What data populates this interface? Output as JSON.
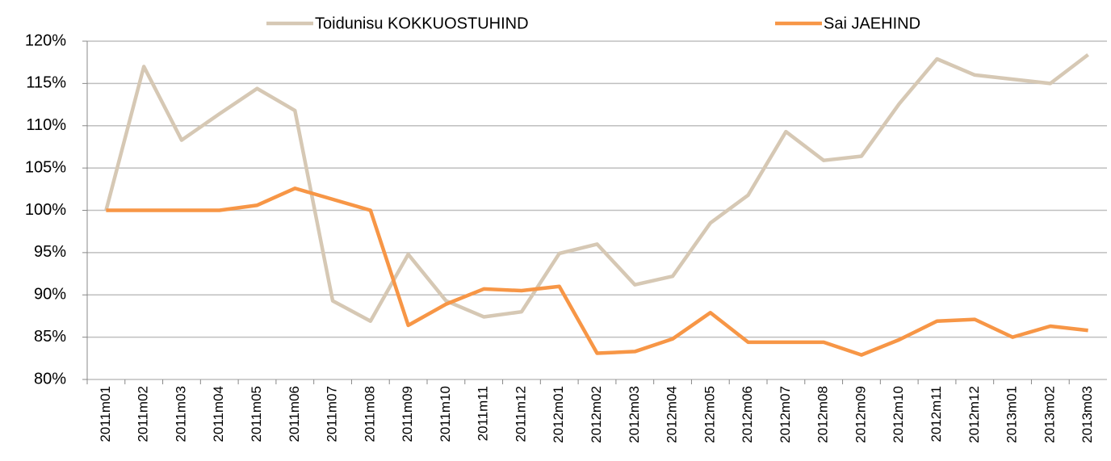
{
  "chart_data": {
    "type": "line",
    "categories": [
      "2011m01",
      "2011m02",
      "2011m03",
      "2011m04",
      "2011m05",
      "2011m06",
      "2011m07",
      "2011m08",
      "2011m09",
      "2011m10",
      "2011m11",
      "2011m12",
      "2012m01",
      "2012m02",
      "2012m03",
      "2012m04",
      "2012m05",
      "2012m06",
      "2012m07",
      "2012m08",
      "2012m09",
      "2012m10",
      "2012m11",
      "2012m12",
      "2013m01",
      "2013m02",
      "2013m03"
    ],
    "series": [
      {
        "name": "Toidunisu KOKKUOSTUHIND",
        "color": "#d6c8b4",
        "values": [
          100,
          117,
          108.3,
          111.4,
          114.4,
          111.8,
          89.3,
          86.9,
          94.8,
          89.3,
          87.4,
          88.0,
          94.9,
          96.0,
          91.2,
          92.2,
          98.5,
          101.8,
          109.3,
          105.9,
          106.4,
          112.6,
          117.9,
          116.0,
          115.5,
          115.0,
          118.4
        ]
      },
      {
        "name": "Sai JAEHIND",
        "color": "#f79646",
        "values": [
          100,
          100,
          100,
          100,
          100.6,
          102.6,
          101.3,
          100,
          86.4,
          88.9,
          90.7,
          90.5,
          91.0,
          83.1,
          83.3,
          84.8,
          87.9,
          84.4,
          84.4,
          84.4,
          82.9,
          84.7,
          86.9,
          87.1,
          85.0,
          86.3,
          85.8
        ]
      }
    ],
    "ylim": [
      80,
      120
    ],
    "yticks": [
      {
        "value": 80,
        "label": "80%"
      },
      {
        "value": 85,
        "label": "85%"
      },
      {
        "value": 90,
        "label": "90%"
      },
      {
        "value": 95,
        "label": "95%"
      },
      {
        "value": 100,
        "label": "100%"
      },
      {
        "value": 105,
        "label": "105%"
      },
      {
        "value": 110,
        "label": "110%"
      },
      {
        "value": 115,
        "label": "115%"
      },
      {
        "value": 120,
        "label": "120%"
      }
    ],
    "grid": true,
    "legend": "top"
  }
}
